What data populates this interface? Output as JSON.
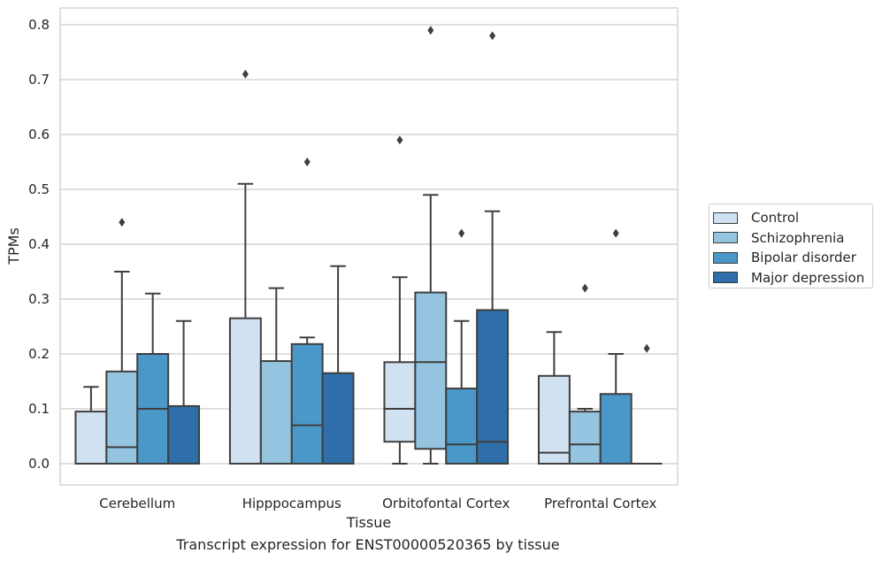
{
  "chart_data": {
    "type": "box",
    "xlabel": "Tissue",
    "ylabel": "TPMs",
    "caption": "Transcript expression for ENST00000520365 by tissue",
    "ylim": [
      -0.04,
      0.83
    ],
    "yticks": [
      "0.0",
      "0.1",
      "0.2",
      "0.3",
      "0.4",
      "0.5",
      "0.6",
      "0.7",
      "0.8"
    ],
    "categories": [
      "Cerebellum",
      "Hipppocampus",
      "Orbitofontal Cortex",
      "Prefrontal Cortex"
    ],
    "grid": true,
    "legend_position": "right",
    "series": [
      {
        "name": "Control",
        "color": "#d0e1f2",
        "boxes": [
          {
            "min": 0,
            "q1": 0,
            "median": 0,
            "q3": 0.095,
            "max": 0.14,
            "outliers": []
          },
          {
            "min": 0,
            "q1": 0,
            "median": 0,
            "q3": 0.265,
            "max": 0.51,
            "outliers": [
              0.71
            ]
          },
          {
            "min": 0,
            "q1": 0.04,
            "median": 0.1,
            "q3": 0.185,
            "max": 0.34,
            "outliers": [
              0.59
            ]
          },
          {
            "min": 0,
            "q1": 0,
            "median": 0.02,
            "q3": 0.16,
            "max": 0.24,
            "outliers": []
          }
        ]
      },
      {
        "name": "Schizophrenia",
        "color": "#94c4df",
        "boxes": [
          {
            "min": 0,
            "q1": 0,
            "median": 0.03,
            "q3": 0.168,
            "max": 0.35,
            "outliers": [
              0.44
            ]
          },
          {
            "min": 0,
            "q1": 0,
            "median": 0,
            "q3": 0.187,
            "max": 0.32,
            "outliers": []
          },
          {
            "min": 0,
            "q1": 0.027,
            "median": 0.185,
            "q3": 0.312,
            "max": 0.49,
            "outliers": [
              0.79
            ]
          },
          {
            "min": 0,
            "q1": 0,
            "median": 0.035,
            "q3": 0.095,
            "max": 0.1,
            "outliers": [
              0.32
            ]
          }
        ]
      },
      {
        "name": "Bipolar disorder",
        "color": "#4a98c9",
        "boxes": [
          {
            "min": 0,
            "q1": 0,
            "median": 0.1,
            "q3": 0.2,
            "max": 0.31,
            "outliers": []
          },
          {
            "min": 0,
            "q1": 0,
            "median": 0.07,
            "q3": 0.218,
            "max": 0.23,
            "outliers": [
              0.55
            ]
          },
          {
            "min": 0,
            "q1": 0,
            "median": 0.035,
            "q3": 0.137,
            "max": 0.26,
            "outliers": [
              0.42
            ]
          },
          {
            "min": 0,
            "q1": 0,
            "median": 0,
            "q3": 0.127,
            "max": 0.2,
            "outliers": [
              0.42
            ]
          }
        ]
      },
      {
        "name": "Major depression",
        "color": "#2e6fab",
        "boxes": [
          {
            "min": 0,
            "q1": 0,
            "median": 0,
            "q3": 0.105,
            "max": 0.26,
            "outliers": []
          },
          {
            "min": 0,
            "q1": 0,
            "median": 0,
            "q3": 0.165,
            "max": 0.36,
            "outliers": []
          },
          {
            "min": 0,
            "q1": 0,
            "median": 0.04,
            "q3": 0.28,
            "max": 0.46,
            "outliers": [
              0.78
            ]
          },
          {
            "min": 0,
            "q1": 0,
            "median": 0,
            "q3": 0,
            "max": 0,
            "outliers": [
              0.21
            ]
          }
        ]
      }
    ]
  }
}
